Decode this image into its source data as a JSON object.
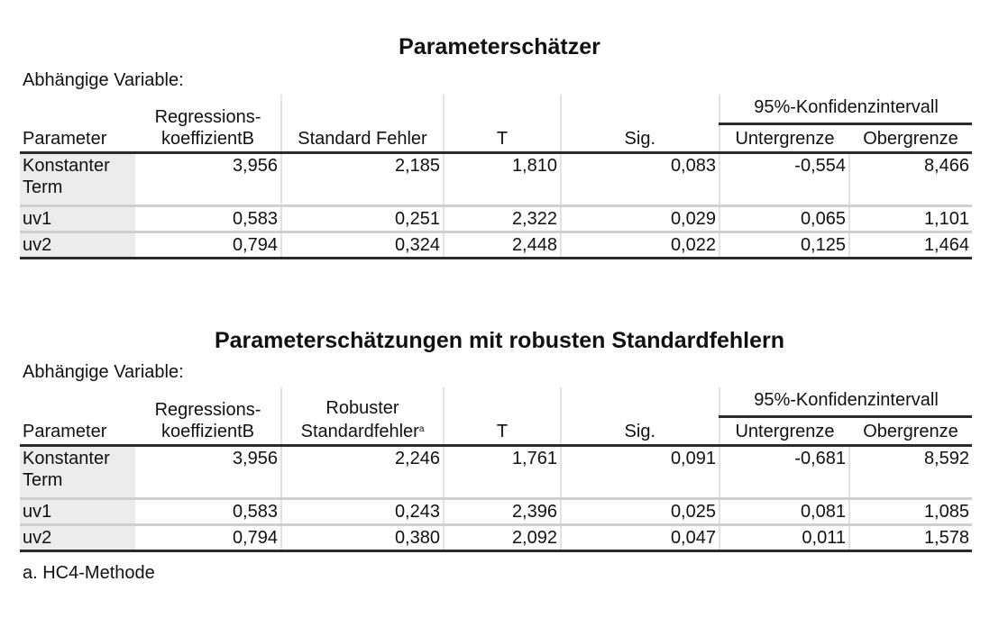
{
  "tables": [
    {
      "title": "Parameterschätzer",
      "dependent_variable": "Abhängige Variable:",
      "columns": {
        "parameter": "Parameter",
        "b": "Regressions-\nkoeffizientB",
        "se": "Standard Fehler",
        "t": "T",
        "sig": "Sig.",
        "ci": "95%-Konfidenzintervall",
        "lower": "Untergrenze",
        "upper": "Obergrenze"
      },
      "rows": [
        [
          "Konstanter Term",
          "3,956",
          "2,185",
          "1,810",
          "0,083",
          "-0,554",
          "8,466"
        ],
        [
          "uv1",
          "0,583",
          "0,251",
          "2,322",
          "0,029",
          "0,065",
          "1,101"
        ],
        [
          "uv2",
          "0,794",
          "0,324",
          "2,448",
          "0,022",
          "0,125",
          "1,464"
        ]
      ]
    },
    {
      "title": "Parameterschätzungen mit robusten Standardfehlern",
      "dependent_variable": "Abhängige Variable:",
      "columns": {
        "parameter": "Parameter",
        "b": "Regressions-\nkoeffizientB",
        "se": "Robuster\nStandardfehler",
        "se_marker": "a",
        "t": "T",
        "sig": "Sig.",
        "ci": "95%-Konfidenzintervall",
        "lower": "Untergrenze",
        "upper": "Obergrenze"
      },
      "rows": [
        [
          "Konstanter Term",
          "3,956",
          "2,246",
          "1,761",
          "0,091",
          "-0,681",
          "8,592"
        ],
        [
          "uv1",
          "0,583",
          "0,243",
          "2,396",
          "0,025",
          "0,081",
          "1,085"
        ],
        [
          "uv2",
          "0,794",
          "0,380",
          "2,092",
          "0,047",
          "0,011",
          "1,578"
        ]
      ],
      "footnote": "a. HC4-Methode"
    }
  ]
}
